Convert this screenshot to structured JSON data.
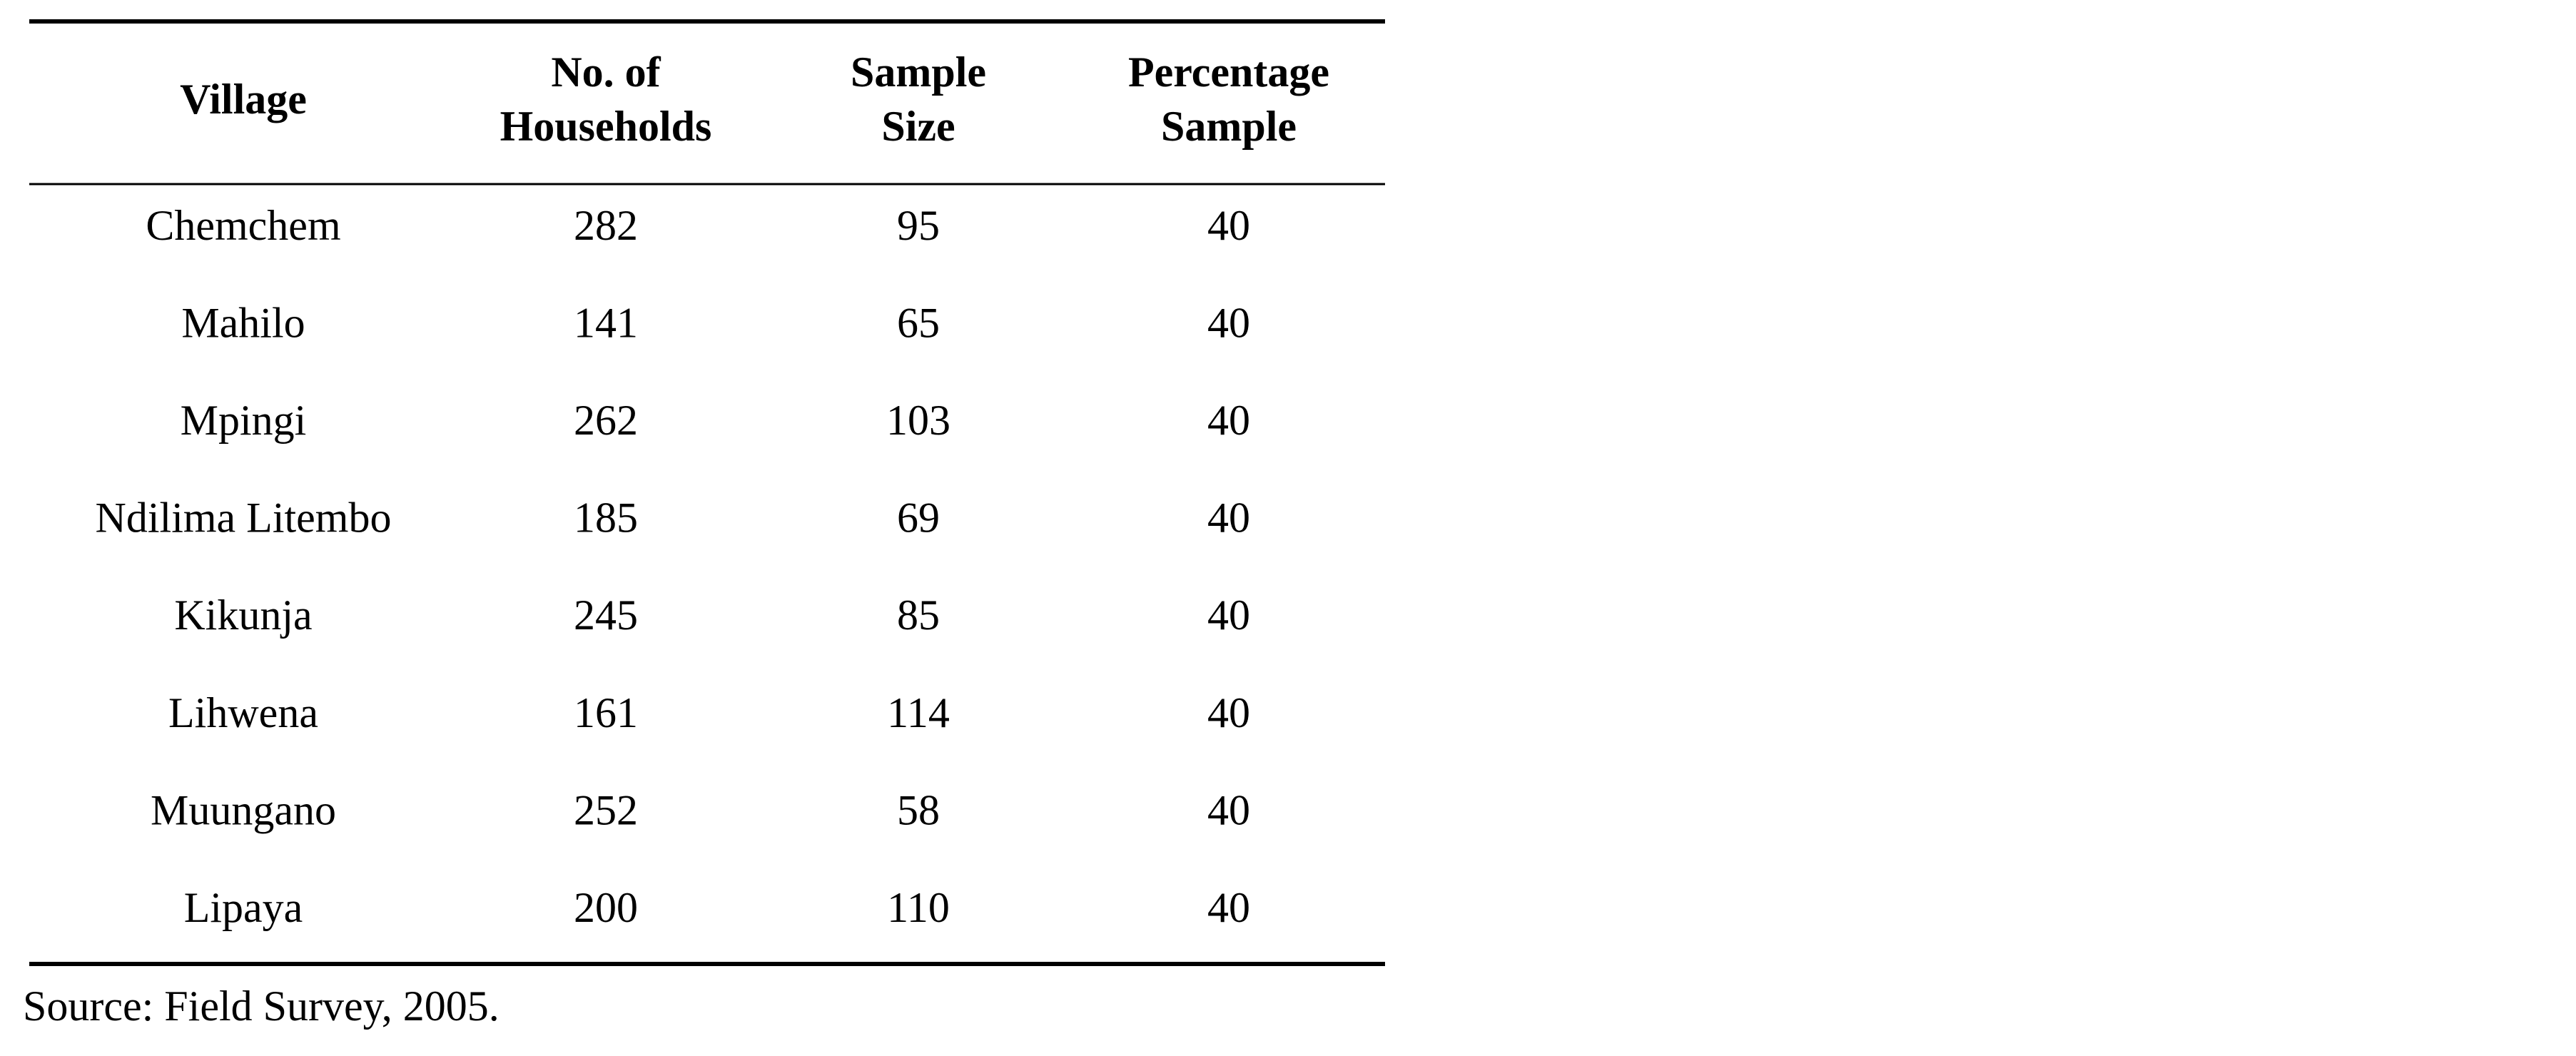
{
  "table": {
    "header": [
      [
        "Village"
      ],
      [
        "No. of",
        "Households"
      ],
      [
        "Sample",
        "Size"
      ],
      [
        "Percentage",
        "Sample"
      ]
    ],
    "rows": [
      [
        "Chemchem",
        282,
        95,
        40
      ],
      [
        "Mahilo",
        141,
        65,
        40
      ],
      [
        "Mpingi",
        262,
        103,
        40
      ],
      [
        "Ndilima Litembo",
        185,
        69,
        40
      ],
      [
        "Kikunja",
        245,
        85,
        40
      ],
      [
        "Lihwena",
        161,
        114,
        40
      ],
      [
        "Muungano",
        252,
        58,
        40
      ],
      [
        "Lipaya",
        200,
        110,
        40
      ]
    ]
  },
  "source": "Source: Field Survey, 2005."
}
